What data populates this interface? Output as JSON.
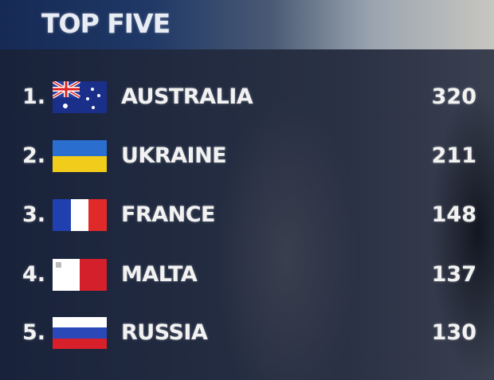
{
  "title": "TOP FIVE",
  "rows": [
    {
      "rank": "1.",
      "country": "AUSTRALIA",
      "score": "320",
      "flag": "australia-flag"
    },
    {
      "rank": "2.",
      "country": "UKRAINE",
      "score": "211",
      "flag": "ukraine-flag"
    },
    {
      "rank": "3.",
      "country": "FRANCE",
      "score": "148",
      "flag": "france-flag"
    },
    {
      "rank": "4.",
      "country": "MALTA",
      "score": "137",
      "flag": "malta-flag"
    },
    {
      "rank": "5.",
      "country": "RUSSIA",
      "score": "130",
      "flag": "russia-flag"
    }
  ]
}
